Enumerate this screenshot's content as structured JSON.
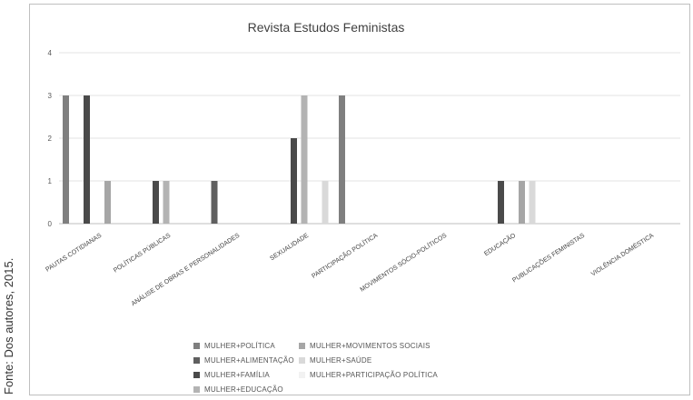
{
  "source_note": "Fonte: Dos autores, 2015.",
  "chart_data": {
    "type": "bar",
    "title": "Revista Estudos Feministas",
    "xlabel": "",
    "ylabel": "",
    "ylim": [
      0,
      4
    ],
    "yticks": [
      0,
      1,
      2,
      3,
      4
    ],
    "grid": true,
    "legend_position": "bottom",
    "categories": [
      "PAUTAS COTIDIANAS",
      "POLÍTICAS PÚBLICAS",
      "ANÁLISE DE OBRAS E PERSONALIDADES",
      "SEXUALIDADE",
      "PARTICIPAÇÃO POLÍTICA",
      "MOVIMENTOS SÓCIO-POLÍTICOS",
      "EDUCAÇÃO",
      "PUBLICAÇÕES FEMINISTAS",
      "VIOLÊNCIA DOMÉSTICA"
    ],
    "series": [
      {
        "name": "MULHER+POLÍTICA",
        "color": "#7f7f7f",
        "values": [
          3,
          0,
          0,
          0,
          3,
          0,
          0,
          0,
          0
        ]
      },
      {
        "name": "MULHER+ALIMENTAÇÃO",
        "color": "#5f5f5f",
        "values": [
          0,
          0,
          1,
          0,
          0,
          0,
          0,
          0,
          0
        ]
      },
      {
        "name": "MULHER+FAMÍLIA",
        "color": "#4a4a4a",
        "values": [
          3,
          1,
          0,
          2,
          0,
          0,
          1,
          0,
          0
        ]
      },
      {
        "name": "MULHER+EDUCAÇÃO",
        "color": "#b3b3b3",
        "values": [
          0,
          1,
          0,
          3,
          0,
          0,
          0,
          0,
          0
        ]
      },
      {
        "name": "MULHER+MOVIMENTOS SOCIAIS",
        "color": "#a6a6a6",
        "values": [
          1,
          0,
          0,
          0,
          0,
          0,
          1,
          0,
          0
        ]
      },
      {
        "name": "MULHER+SAÚDE",
        "color": "#d9d9d9",
        "values": [
          0,
          0,
          0,
          1,
          0,
          0,
          1,
          0,
          0
        ]
      },
      {
        "name": "MULHER+PARTICIPAÇÃO POLÍTICA",
        "color": "#f2f2f2",
        "values": [
          0,
          0,
          0,
          0,
          0,
          0,
          0,
          0,
          0
        ]
      }
    ]
  }
}
